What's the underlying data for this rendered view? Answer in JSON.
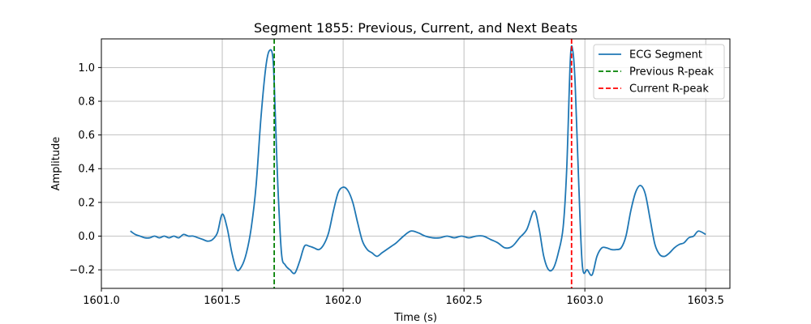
{
  "chart_data": {
    "type": "line",
    "title": "Segment 1855: Previous, Current, and Next Beats",
    "xlabel": "Time (s)",
    "ylabel": "Amplitude",
    "xlim": [
      1601.0,
      1603.6
    ],
    "ylim": [
      -0.31,
      1.17
    ],
    "xticks": [
      1601.0,
      1601.5,
      1602.0,
      1602.5,
      1603.0,
      1603.5
    ],
    "xtick_labels": [
      "1601.0",
      "1601.5",
      "1602.0",
      "1602.5",
      "1603.0",
      "1603.5"
    ],
    "yticks": [
      -0.2,
      0.0,
      0.2,
      0.4,
      0.6,
      0.8,
      1.0
    ],
    "ytick_labels": [
      "−0.2",
      "0.0",
      "0.2",
      "0.4",
      "0.6",
      "0.8",
      "1.0"
    ],
    "grid": true,
    "legend_position": "top-right",
    "series": [
      {
        "name": "ECG Segment",
        "style": "solid",
        "color": "#1f77b4",
        "x": [
          1601.12,
          1601.14,
          1601.16,
          1601.18,
          1601.2,
          1601.22,
          1601.24,
          1601.26,
          1601.28,
          1601.3,
          1601.32,
          1601.34,
          1601.36,
          1601.38,
          1601.4,
          1601.42,
          1601.44,
          1601.46,
          1601.48,
          1601.5,
          1601.52,
          1601.54,
          1601.56,
          1601.58,
          1601.6,
          1601.62,
          1601.64,
          1601.66,
          1601.68,
          1601.695,
          1601.71,
          1601.72,
          1601.73,
          1601.745,
          1601.76,
          1601.78,
          1601.8,
          1601.82,
          1601.84,
          1601.86,
          1601.88,
          1601.9,
          1601.92,
          1601.94,
          1601.96,
          1601.98,
          1602.0,
          1602.02,
          1602.04,
          1602.06,
          1602.08,
          1602.1,
          1602.12,
          1602.14,
          1602.16,
          1602.18,
          1602.2,
          1602.22,
          1602.25,
          1602.28,
          1602.31,
          1602.34,
          1602.37,
          1602.4,
          1602.43,
          1602.46,
          1602.49,
          1602.52,
          1602.55,
          1602.58,
          1602.61,
          1602.64,
          1602.67,
          1602.7,
          1602.73,
          1602.76,
          1602.79,
          1602.81,
          1602.83,
          1602.85,
          1602.87,
          1602.89,
          1602.91,
          1602.925,
          1602.94,
          1602.95,
          1602.96,
          1602.975,
          1602.99,
          1603.01,
          1603.03,
          1603.05,
          1603.07,
          1603.09,
          1603.11,
          1603.13,
          1603.15,
          1603.17,
          1603.19,
          1603.21,
          1603.23,
          1603.25,
          1603.27,
          1603.29,
          1603.31,
          1603.33,
          1603.35,
          1603.37,
          1603.39,
          1603.41,
          1603.43,
          1603.45,
          1603.47,
          1603.5
        ],
        "y": [
          0.03,
          0.01,
          0.0,
          -0.01,
          -0.01,
          0.0,
          -0.01,
          0.0,
          -0.01,
          0.0,
          -0.01,
          0.01,
          0.0,
          0.0,
          -0.01,
          -0.02,
          -0.03,
          -0.02,
          0.02,
          0.13,
          0.05,
          -0.1,
          -0.2,
          -0.18,
          -0.1,
          0.05,
          0.3,
          0.7,
          1.0,
          1.1,
          1.05,
          0.7,
          0.3,
          -0.1,
          -0.17,
          -0.2,
          -0.22,
          -0.15,
          -0.06,
          -0.06,
          -0.07,
          -0.08,
          -0.05,
          0.02,
          0.15,
          0.26,
          0.29,
          0.27,
          0.2,
          0.08,
          -0.03,
          -0.08,
          -0.1,
          -0.12,
          -0.1,
          -0.08,
          -0.06,
          -0.04,
          0.0,
          0.03,
          0.02,
          0.0,
          -0.01,
          -0.01,
          0.0,
          -0.01,
          0.0,
          -0.01,
          0.0,
          0.0,
          -0.02,
          -0.04,
          -0.07,
          -0.06,
          -0.01,
          0.04,
          0.15,
          0.05,
          -0.12,
          -0.2,
          -0.19,
          -0.1,
          0.05,
          0.4,
          1.05,
          1.1,
          0.9,
          0.3,
          -0.18,
          -0.2,
          -0.23,
          -0.12,
          -0.07,
          -0.07,
          -0.08,
          -0.08,
          -0.07,
          0.0,
          0.15,
          0.26,
          0.3,
          0.25,
          0.1,
          -0.05,
          -0.11,
          -0.12,
          -0.1,
          -0.07,
          -0.05,
          -0.04,
          -0.01,
          0.0,
          0.03,
          0.01
        ]
      },
      {
        "name": "Previous R-peak",
        "style": "dashed",
        "color": "#008000",
        "x_value": 1601.715
      },
      {
        "name": "Current R-peak",
        "style": "dashed",
        "color": "#ff0000",
        "x_value": 1602.945
      }
    ]
  }
}
